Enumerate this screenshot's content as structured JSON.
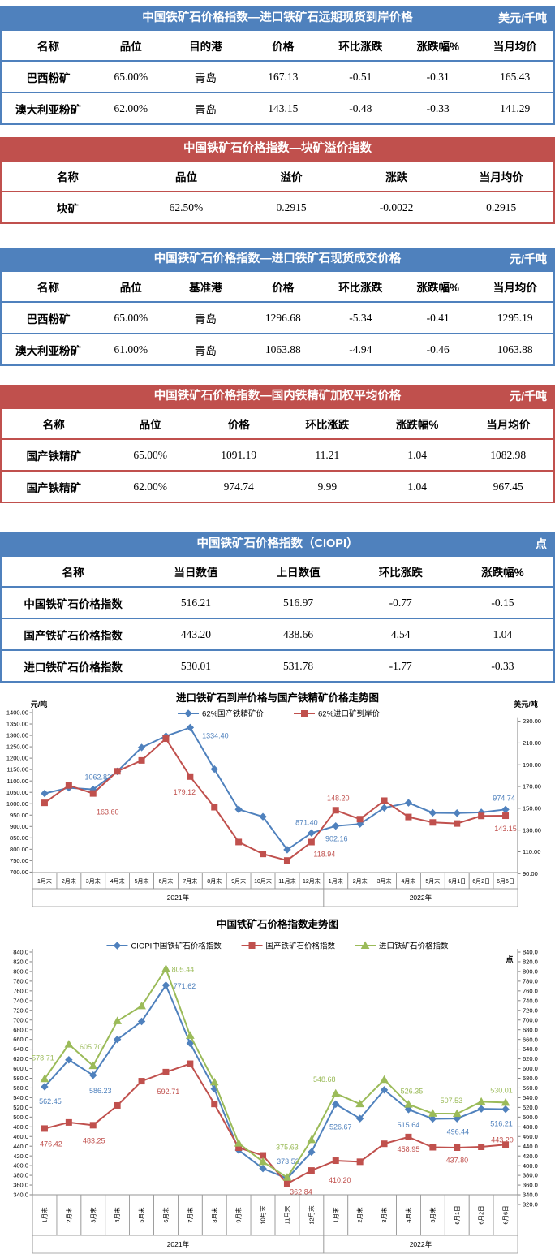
{
  "tables": [
    {
      "id": "import-forward-spot",
      "theme": "blue",
      "title": "中国铁矿石价格指数—进口铁矿石远期现货到岸价格",
      "unit": "美元/千吨",
      "headers": [
        "名称",
        "品位",
        "目的港",
        "价格",
        "环比涨跌",
        "涨跌幅%",
        "当月均价"
      ],
      "rows": [
        [
          "巴西粉矿",
          "65.00%",
          "青岛",
          "167.13",
          "-0.51",
          "-0.31",
          "165.43"
        ],
        [
          "澳大利亚粉矿",
          "62.00%",
          "青岛",
          "143.15",
          "-0.48",
          "-0.33",
          "141.29"
        ]
      ]
    },
    {
      "id": "lump-premium",
      "theme": "red",
      "title": "中国铁矿石价格指数—块矿溢价指数",
      "unit": "",
      "headers": [
        "名称",
        "品位",
        "溢价",
        "涨跌",
        "当月均价"
      ],
      "rows": [
        [
          "块矿",
          "62.50%",
          "0.2915",
          "-0.0022",
          "0.2915"
        ]
      ]
    },
    {
      "id": "import-spot-deal",
      "theme": "blue",
      "title": "中国铁矿石价格指数—进口铁矿石现货成交价格",
      "unit": "元/千吨",
      "headers": [
        "名称",
        "品位",
        "基准港",
        "价格",
        "环比涨跌",
        "涨跌幅%",
        "当月均价"
      ],
      "rows": [
        [
          "巴西粉矿",
          "65.00%",
          "青岛",
          "1296.68",
          "-5.34",
          "-0.41",
          "1295.19"
        ],
        [
          "澳大利亚粉矿",
          "61.00%",
          "青岛",
          "1063.88",
          "-4.94",
          "-0.46",
          "1063.88"
        ]
      ]
    },
    {
      "id": "domestic-concentrate",
      "theme": "red",
      "title": "中国铁矿石价格指数—国内铁精矿加权平均价格",
      "unit": "元/千吨",
      "headers": [
        "名称",
        "品位",
        "价格",
        "环比涨跌",
        "涨跌幅%",
        "当月均价"
      ],
      "rows": [
        [
          "国产铁精矿",
          "65.00%",
          "1091.19",
          "11.21",
          "1.04",
          "1082.98"
        ],
        [
          "国产铁精矿",
          "62.00%",
          "974.74",
          "9.99",
          "1.04",
          "967.45"
        ]
      ]
    },
    {
      "id": "ciopi",
      "theme": "blue",
      "title": "中国铁矿石价格指数（CIOPI）",
      "unit": "点",
      "headers": [
        "名称",
        "当日数值",
        "上日数值",
        "环比涨跌",
        "涨跌幅%"
      ],
      "rows": [
        [
          "中国铁矿石价格指数",
          "516.21",
          "516.97",
          "-0.77",
          "-0.15"
        ],
        [
          "国产铁矿石价格指数",
          "443.20",
          "438.66",
          "4.54",
          "1.04"
        ],
        [
          "进口铁矿石价格指数",
          "530.01",
          "531.78",
          "-1.77",
          "-0.33"
        ]
      ]
    }
  ],
  "chart_data": [
    {
      "id": "price-trend-chart",
      "type": "line",
      "title": "进口铁矿石到岸价格与国产铁精矿价格走势图",
      "left_axis": {
        "title": "元/吨",
        "min": 700,
        "max": 1400,
        "step": 50,
        "decimals": 2
      },
      "right_axis": {
        "title": "美元/吨",
        "min": 90,
        "max": 230,
        "step": 20,
        "decimals": 2
      },
      "categories": [
        "1月末",
        "2月末",
        "3月末",
        "4月末",
        "5月末",
        "6月末",
        "7月末",
        "8月末",
        "9月末",
        "10月末",
        "11月末",
        "12月末",
        "1月末",
        "2月末",
        "3月末",
        "4月末",
        "5月末",
        "6月1日",
        "6月2日",
        "6月6日"
      ],
      "year_groups": [
        {
          "label": "2021年",
          "span": 12
        },
        {
          "label": "2022年",
          "span": 8
        }
      ],
      "grid": "off",
      "legend_position": "top",
      "series": [
        {
          "name": "62%国产铁精矿价",
          "color": "#4f81bd",
          "marker": "diamond",
          "axis": "left",
          "values": [
            1045,
            1070,
            1062.82,
            1142,
            1247,
            1297,
            1334.4,
            1152,
            975,
            943,
            798,
            871.4,
            902.16,
            911,
            982,
            1004,
            960,
            959,
            962,
            974.74
          ],
          "labels": [
            {
              "i": 2,
              "text": "1062.82",
              "dx": 6,
              "dy": -15
            },
            {
              "i": 6,
              "text": "1334.40",
              "dx": 31,
              "dy": 10
            },
            {
              "i": 11,
              "text": "871.40",
              "dx": -6,
              "dy": -13
            },
            {
              "i": 12,
              "text": "902.16",
              "dx": 1,
              "dy": 16
            },
            {
              "i": 19,
              "text": "974.74",
              "dx": -2,
              "dy": -14
            }
          ]
        },
        {
          "name": "62%进口矿到岸价",
          "color": "#c0504d",
          "marker": "square",
          "axis": "right",
          "values": [
            155,
            171,
            163.6,
            184,
            194,
            214,
            179.12,
            151,
            119,
            108,
            102,
            118.94,
            148.2,
            140,
            157,
            142,
            137,
            136,
            143,
            143.15
          ],
          "labels": [
            {
              "i": 2,
              "text": "163.60",
              "dx": 18,
              "dy": 23
            },
            {
              "i": 6,
              "text": "179.12",
              "dx": -7,
              "dy": 19
            },
            {
              "i": 11,
              "text": "118.94",
              "dx": 16,
              "dy": 15
            },
            {
              "i": 12,
              "text": "148.20",
              "dx": 3,
              "dy": -15
            },
            {
              "i": 19,
              "text": "143.15",
              "dx": 0,
              "dy": 16
            }
          ]
        }
      ]
    },
    {
      "id": "index-trend-chart",
      "type": "line",
      "title": "中国铁矿石价格指数走势图",
      "left_axis": {
        "title": "",
        "min": 340,
        "max": 840,
        "step": 20,
        "decimals": 1
      },
      "right_axis": {
        "title": "点",
        "min": 320,
        "max": 840,
        "step": 20,
        "decimals": 1
      },
      "categories": [
        "1月末",
        "2月末",
        "3月末",
        "4月末",
        "5月末",
        "6月末",
        "7月末",
        "8月末",
        "9月末",
        "10月末",
        "11月末",
        "12月末",
        "1月末",
        "2月末",
        "3月末",
        "4月末",
        "5月末",
        "6月1日",
        "6月2日",
        "6月6日"
      ],
      "year_groups": [
        {
          "label": "2021年",
          "span": 12
        },
        {
          "label": "2022年",
          "span": 8
        }
      ],
      "grid": "off",
      "legend_position": "top",
      "series": [
        {
          "name": "CIOPI中国铁矿石价格指数",
          "color": "#4f81bd",
          "marker": "diamond",
          "axis": "left",
          "values": [
            562.45,
            618,
            586.23,
            660,
            697,
            771.62,
            652,
            558,
            432,
            394,
            373.53,
            428,
            526.67,
            497,
            556,
            515.64,
            496.44,
            497,
            516.97,
            516.21
          ],
          "labels": [
            {
              "i": 0,
              "text": "562.45",
              "dx": 7,
              "dy": 18
            },
            {
              "i": 2,
              "text": "586.23",
              "dx": 9,
              "dy": 19
            },
            {
              "i": 5,
              "text": "771.62",
              "dx": 23,
              "dy": 1
            },
            {
              "i": 10,
              "text": "373.53",
              "dx": 1,
              "dy": -21
            },
            {
              "i": 12,
              "text": "526.67",
              "dx": 6,
              "dy": 28
            },
            {
              "i": 15,
              "text": "515.64",
              "dx": 0,
              "dy": 19
            },
            {
              "i": 16,
              "text": "496.44",
              "dx": 31,
              "dy": 16
            },
            {
              "i": 19,
              "text": "516.21",
              "dx": -5,
              "dy": 18
            }
          ]
        },
        {
          "name": "国产铁矿石价格指数",
          "color": "#c0504d",
          "marker": "square",
          "axis": "left",
          "values": [
            476.42,
            489,
            483.25,
            524,
            574,
            592.71,
            610,
            527,
            437,
            421,
            362.84,
            390,
            410.2,
            408,
            445,
            458.95,
            437.8,
            437,
            438.66,
            443.2
          ],
          "labels": [
            {
              "i": 0,
              "text": "476.42",
              "dx": 8,
              "dy": 19
            },
            {
              "i": 2,
              "text": "483.25",
              "dx": 1,
              "dy": 19
            },
            {
              "i": 5,
              "text": "592.71",
              "dx": 3,
              "dy": 24
            },
            {
              "i": 10,
              "text": "362.84",
              "dx": 17,
              "dy": 10
            },
            {
              "i": 12,
              "text": "410.20",
              "dx": 5,
              "dy": 24
            },
            {
              "i": 15,
              "text": "458.95",
              "dx": 0,
              "dy": 15
            },
            {
              "i": 16,
              "text": "437.80",
              "dx": 30,
              "dy": 16
            },
            {
              "i": 19,
              "text": "443.20",
              "dx": -4,
              "dy": -6
            }
          ]
        },
        {
          "name": "进口铁矿石价格指数",
          "color": "#9bbb59",
          "marker": "triangle",
          "axis": "left",
          "values": [
            578.71,
            650,
            605.7,
            698,
            729,
            805.44,
            668,
            572,
            446,
            408,
            375.63,
            453,
            548.68,
            527,
            577,
            526.35,
            507.53,
            507,
            531.78,
            530.01
          ],
          "labels": [
            {
              "i": 0,
              "text": "578.71",
              "dx": -2,
              "dy": -26
            },
            {
              "i": 2,
              "text": "605.70",
              "dx": -3,
              "dy": -23
            },
            {
              "i": 5,
              "text": "805.44",
              "dx": 21,
              "dy": 1
            },
            {
              "i": 10,
              "text": "375.63",
              "dx": 0,
              "dy": -37
            },
            {
              "i": 12,
              "text": "548.68",
              "dx": -14,
              "dy": -17
            },
            {
              "i": 15,
              "text": "526.35",
              "dx": 4,
              "dy": -16
            },
            {
              "i": 16,
              "text": "507.53",
              "dx": 23,
              "dy": -16
            },
            {
              "i": 19,
              "text": "530.01",
              "dx": -5,
              "dy": -15
            }
          ]
        }
      ]
    }
  ]
}
